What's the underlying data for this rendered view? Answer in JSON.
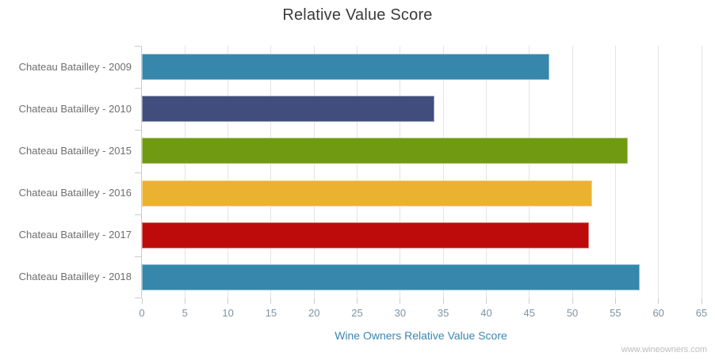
{
  "page": {
    "watermark": "www.wineowners.com"
  },
  "chart_data": {
    "type": "bar",
    "orientation": "horizontal",
    "title": "Relative Value Score",
    "categories": [
      "Chateau Batailley - 2009",
      "Chateau Batailley - 2010",
      "Chateau Batailley - 2015",
      "Chateau Batailley - 2016",
      "Chateau Batailley - 2017",
      "Chateau Batailley - 2018"
    ],
    "values": [
      47.3,
      34.0,
      56.4,
      52.3,
      51.9,
      57.8
    ],
    "bar_colors": [
      "#3787AC",
      "#414D7D",
      "#6F9A11",
      "#EBB232",
      "#BD0B0B",
      "#3787AC"
    ],
    "xlabel": "Wine Owners Relative Value Score",
    "ylabel": "",
    "xlim": [
      0,
      65
    ],
    "xticks": [
      0,
      5,
      10,
      15,
      20,
      25,
      30,
      35,
      40,
      45,
      50,
      55,
      60,
      65
    ],
    "grid": true,
    "legend": false,
    "colors": {
      "title_text": "#3b3b3b",
      "category_text": "#6e6e6e",
      "tick_text": "#7f93a2",
      "xlabel_text": "#3a87ad",
      "gridline": "#e3e3e3",
      "axis_line": "#cccccc",
      "watermark_text": "#bdbdbd",
      "background": "#ffffff"
    }
  }
}
